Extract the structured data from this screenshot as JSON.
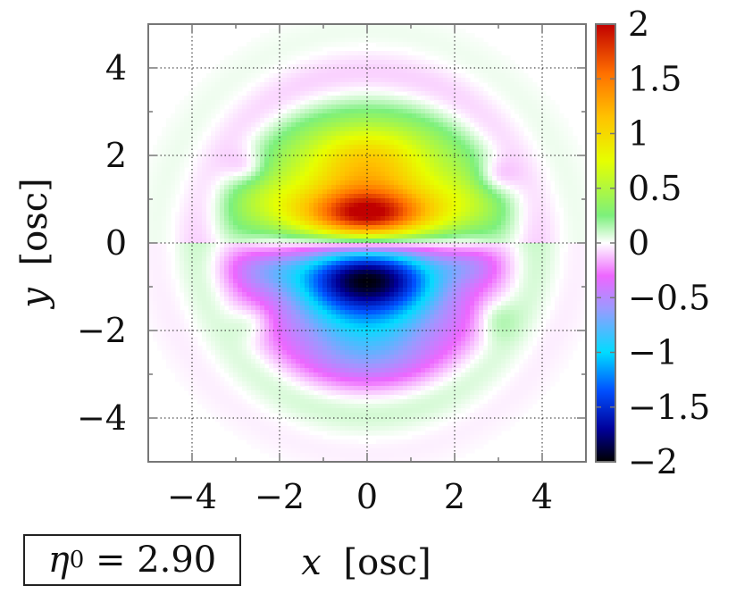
{
  "chart_data": {
    "type": "heatmap",
    "title": "",
    "xlabel_var": "x",
    "xlabel_unit": "[osc]",
    "ylabel_var": "y",
    "ylabel_unit": "[osc]",
    "xlim": [
      -5,
      5
    ],
    "ylim": [
      -5,
      5
    ],
    "x_ticks": [
      -4,
      -2,
      0,
      2,
      4
    ],
    "y_ticks": [
      -4,
      -2,
      0,
      2,
      4
    ],
    "x_tick_labels": [
      "−4",
      "−2",
      "0",
      "2",
      "4"
    ],
    "y_tick_labels": [
      "−4",
      "−2",
      "0",
      "2",
      "4"
    ],
    "grid": true,
    "colorbar": {
      "range": [
        -2,
        2
      ],
      "ticks": [
        2,
        1.5,
        1,
        0.5,
        0,
        -0.5,
        -1,
        -1.5,
        -2
      ],
      "tick_labels": [
        "2",
        "1.5",
        "1",
        "0.5",
        "0",
        "−0.5",
        "−1",
        "−1.5",
        "−2"
      ],
      "colors": [
        {
          "v": -2.0,
          "c": "#000000"
        },
        {
          "v": -1.7,
          "c": "#00009a"
        },
        {
          "v": -1.35,
          "c": "#0050ff"
        },
        {
          "v": -1.0,
          "c": "#00dcff"
        },
        {
          "v": -0.6,
          "c": "#9a9aff"
        },
        {
          "v": -0.3,
          "c": "#ee66ff"
        },
        {
          "v": 0.0,
          "c": "#ffffff"
        },
        {
          "v": 0.25,
          "c": "#7cf07c"
        },
        {
          "v": 0.75,
          "c": "#e6ff00"
        },
        {
          "v": 1.15,
          "c": "#ffc200"
        },
        {
          "v": 1.55,
          "c": "#ff7000"
        },
        {
          "v": 2.0,
          "c": "#c00000"
        }
      ]
    },
    "field_description": "dipole-like pattern: positive lobe centered near (0, 0.6) up to ~1.85, negative lobe centered near (0, -0.8) down to ~-1.95, weak alternating fringes further out"
  },
  "annotation": {
    "symbol": "η",
    "subscript": "0",
    "relation": " = 2.90"
  }
}
